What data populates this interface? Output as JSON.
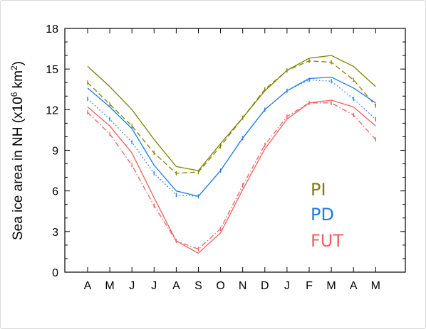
{
  "chart_data": {
    "type": "line",
    "ylabel": "Sea ice area in NH (x10",
    "ylabel_sup1": "6",
    "ylabel_mid": " km",
    "ylabel_sup2": "2",
    "ylabel_end": ")",
    "xlabel": "",
    "title": "",
    "categories": [
      "A",
      "M",
      "J",
      "J",
      "A",
      "S",
      "O",
      "N",
      "D",
      "J",
      "F",
      "M",
      "A",
      "M"
    ],
    "yticks": [
      "0",
      "3",
      "6",
      "9",
      "12",
      "15",
      "18"
    ],
    "ylim": [
      0,
      18
    ],
    "grid": false,
    "legend_position": "right-middle",
    "series": [
      {
        "name": "PI",
        "color": "#808000",
        "style": "solid",
        "values": [
          15.2,
          13.7,
          12.0,
          9.8,
          7.8,
          7.5,
          9.5,
          11.4,
          13.4,
          14.9,
          15.8,
          16.0,
          15.2,
          13.7
        ]
      },
      {
        "name": "",
        "color": "#808000",
        "style": "dashed",
        "values": [
          14.0,
          12.4,
          10.8,
          8.8,
          7.3,
          7.4,
          9.3,
          11.4,
          13.5,
          14.9,
          15.6,
          15.5,
          14.2,
          12.3
        ]
      },
      {
        "name": "PD",
        "color": "#1e7be6",
        "style": "solid",
        "values": [
          13.6,
          12.2,
          10.6,
          7.9,
          6.0,
          5.6,
          7.5,
          9.9,
          12.0,
          13.4,
          14.3,
          14.4,
          13.6,
          12.5
        ]
      },
      {
        "name": "",
        "color": "#1e7be6",
        "style": "dotted",
        "values": [
          12.8,
          11.3,
          9.6,
          7.3,
          5.7,
          5.6,
          7.5,
          9.9,
          12.0,
          13.4,
          14.2,
          14.1,
          12.8,
          11.3
        ]
      },
      {
        "name": "FUT",
        "color": "#f0605d",
        "style": "solid",
        "values": [
          12.2,
          10.8,
          8.8,
          5.5,
          2.3,
          1.4,
          2.9,
          6.1,
          9.1,
          11.3,
          12.5,
          12.7,
          12.2,
          10.8
        ]
      },
      {
        "name": "",
        "color": "#f0605d",
        "style": "dashdot",
        "values": [
          11.8,
          10.2,
          7.9,
          4.9,
          2.3,
          1.7,
          3.2,
          6.4,
          9.4,
          11.5,
          12.5,
          12.5,
          11.6,
          9.8
        ]
      }
    ],
    "legend": [
      {
        "label": "PI",
        "color": "#808000"
      },
      {
        "label": "PD",
        "color": "#1e7be6"
      },
      {
        "label": "FUT",
        "color": "#f0605d"
      }
    ]
  }
}
